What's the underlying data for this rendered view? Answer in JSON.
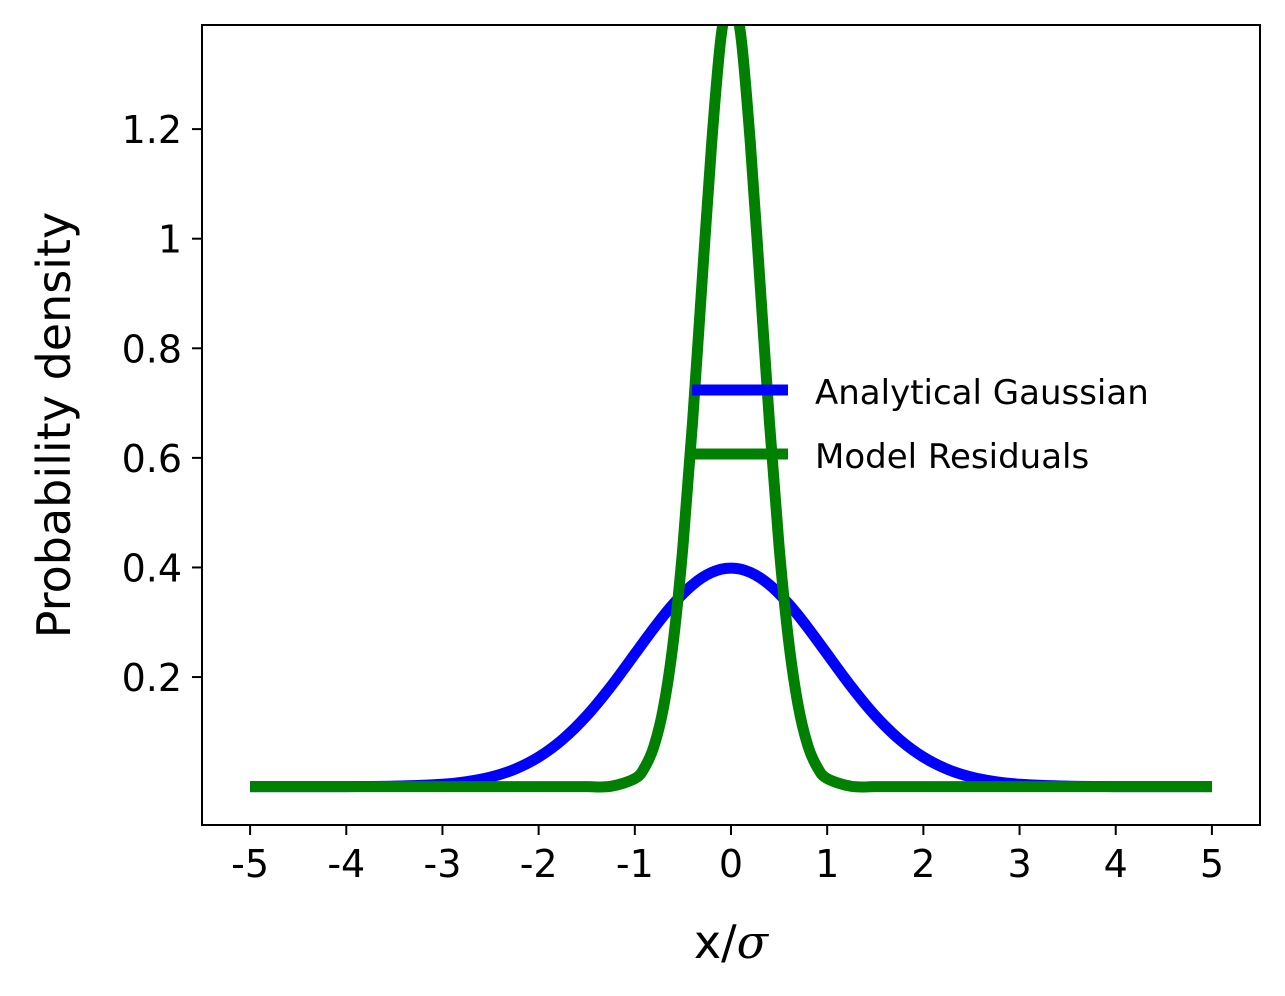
{
  "chart_data": {
    "type": "line",
    "title": "",
    "xlabel": "x/",
    "xlabel_symbol": "σ",
    "ylabel": "Probability density",
    "xlim": [
      -5.5,
      5.5
    ],
    "ylim": [
      -0.07,
      1.39
    ],
    "x_ticks": [
      -5,
      -4,
      -3,
      -2,
      -1,
      0,
      1,
      2,
      3,
      4,
      5
    ],
    "x_tick_labels": [
      "-5",
      "-4",
      "-3",
      "-2",
      "-1",
      "0",
      "1",
      "2",
      "3",
      "4",
      "5"
    ],
    "y_ticks": [
      0.2,
      0.4,
      0.6,
      0.8,
      1.0,
      1.2
    ],
    "y_tick_labels": [
      "0.2",
      "0.4",
      "0.6",
      "0.8",
      "1",
      "1.2"
    ],
    "grid": false,
    "legend_position": "center-right",
    "x": [
      -5.0,
      -4.5,
      -4.0,
      -3.5,
      -3.0,
      -2.75,
      -2.5,
      -2.25,
      -2.0,
      -1.75,
      -1.5,
      -1.25,
      -1.0,
      -0.9,
      -0.8,
      -0.7,
      -0.6,
      -0.5,
      -0.4,
      -0.3,
      -0.2,
      -0.1,
      0.0,
      0.1,
      0.2,
      0.3,
      0.4,
      0.5,
      0.6,
      0.7,
      0.8,
      0.9,
      1.0,
      1.25,
      1.5,
      1.75,
      2.0,
      2.25,
      2.5,
      2.75,
      3.0,
      3.5,
      4.0,
      4.5,
      5.0
    ],
    "series": [
      {
        "name": "Analytical Gaussian",
        "color": "#0000ff",
        "values": [
          0.0,
          0.0,
          0.0001,
          0.0009,
          0.0044,
          0.0091,
          0.0175,
          0.0317,
          0.054,
          0.0863,
          0.1295,
          0.1826,
          0.242,
          0.2661,
          0.2897,
          0.3123,
          0.3332,
          0.3521,
          0.3683,
          0.3814,
          0.391,
          0.397,
          0.3989,
          0.397,
          0.391,
          0.3814,
          0.3683,
          0.3521,
          0.3332,
          0.3123,
          0.2897,
          0.2661,
          0.242,
          0.1826,
          0.1295,
          0.0863,
          0.054,
          0.0317,
          0.0175,
          0.0091,
          0.0044,
          0.0009,
          0.0001,
          0.0,
          0.0
        ]
      },
      {
        "name": "Model Residuals",
        "color": "#008000",
        "values": [
          0.0,
          0.0,
          0.0,
          0.0,
          0.0,
          0.0,
          0.0,
          0.0,
          0.0,
          0.0,
          0.0,
          0.0006,
          0.0147,
          0.0344,
          0.0742,
          0.1464,
          0.2646,
          0.4381,
          0.6646,
          0.9237,
          1.1765,
          1.3735,
          1.44,
          1.3735,
          1.1765,
          0.9237,
          0.6646,
          0.4381,
          0.2646,
          0.1464,
          0.0742,
          0.0344,
          0.0147,
          0.0006,
          0.0,
          0.0,
          0.0,
          0.0,
          0.0,
          0.0,
          0.0,
          0.0,
          0.0,
          0.0,
          0.0
        ]
      }
    ]
  }
}
